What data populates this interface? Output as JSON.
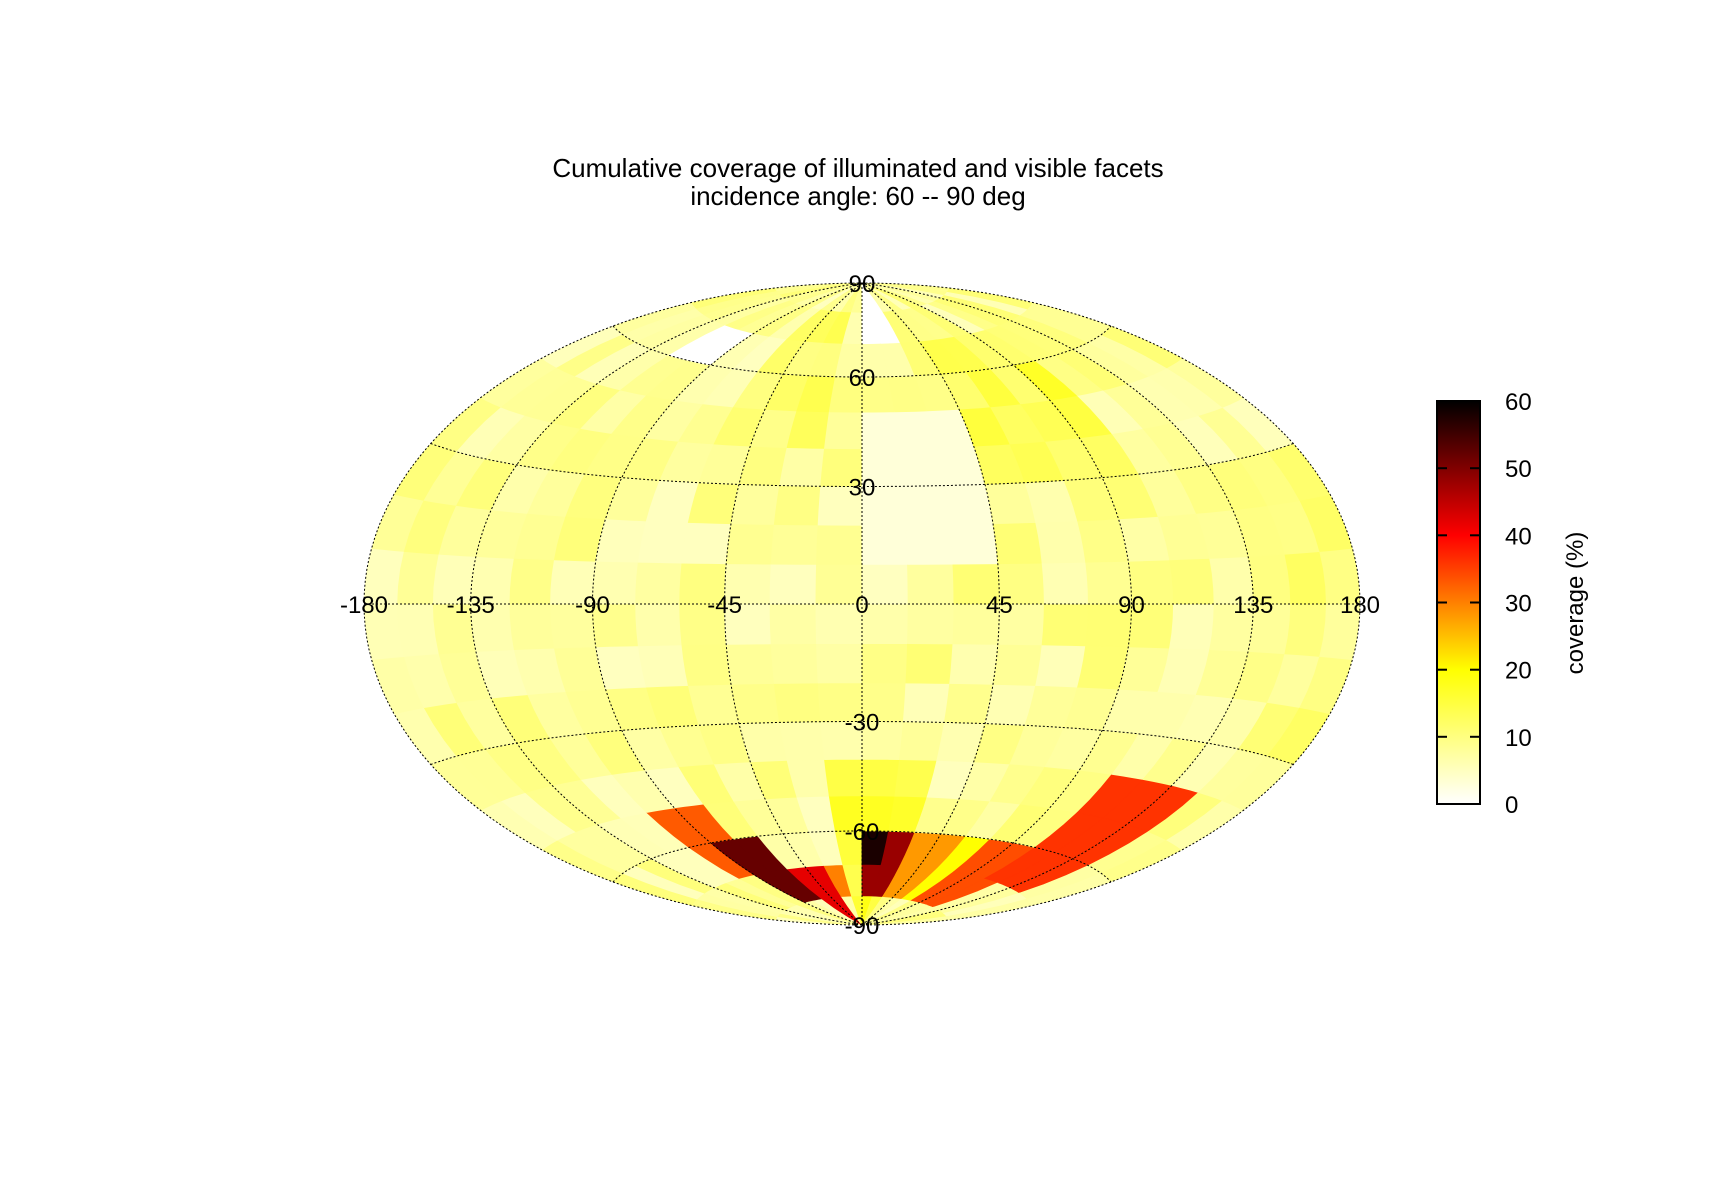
{
  "chart_data": {
    "type": "heatmap",
    "projection": "Hammer-Aitoff (equal-area world map)",
    "title": "Cumulative coverage of illuminated and visible facets",
    "subtitle": "incidence angle: 60 -- 90 deg",
    "x_ticks": [
      "-180",
      "-135",
      "-90",
      "-45",
      "0",
      "45",
      "90",
      "135",
      "180"
    ],
    "y_ticks": [
      "90",
      "60",
      "30",
      "-30",
      "-60",
      "-90"
    ],
    "xlim": [
      -180,
      180
    ],
    "ylim": [
      -90,
      90
    ],
    "grid": true,
    "colorbar": {
      "label": "coverage (%)",
      "ticks": [
        "0",
        "10",
        "20",
        "30",
        "40",
        "50",
        "60"
      ],
      "range": [
        0,
        60
      ],
      "colors": [
        "#ffffff",
        "#ffff80",
        "#ffff00",
        "#ff8000",
        "#ff0000",
        "#800000",
        "#000000"
      ]
    },
    "base_coverage": 8,
    "regions": [
      {
        "lon": [
          -95,
          -65
        ],
        "lat": [
          -78,
          -62
        ],
        "value": 52
      },
      {
        "lon": [
          -65,
          -35
        ],
        "lat": [
          -85,
          -68
        ],
        "value": 42
      },
      {
        "lon": [
          -110,
          -70
        ],
        "lat": [
          -72,
          -50
        ],
        "value": 33
      },
      {
        "lon": [
          -35,
          -10
        ],
        "lat": [
          -82,
          -68
        ],
        "value": 30
      },
      {
        "lon": [
          2,
          14
        ],
        "lat": [
          -68,
          -58
        ],
        "value": 58
      },
      {
        "lon": [
          2,
          28
        ],
        "lat": [
          -82,
          -62
        ],
        "value": 48
      },
      {
        "lon": [
          26,
          60
        ],
        "lat": [
          -82,
          -64
        ],
        "value": 28
      },
      {
        "lon": [
          110,
          150
        ],
        "lat": [
          -66,
          -38
        ],
        "value": 36
      },
      {
        "lon": [
          80,
          115
        ],
        "lat": [
          -82,
          -60
        ],
        "value": 34
      },
      {
        "lon": [
          45,
          90
        ],
        "lat": [
          -75,
          -60
        ],
        "value": 20
      },
      {
        "lon": [
          -10,
          30
        ],
        "lat": [
          -90,
          -45
        ],
        "value": 16
      },
      {
        "lon": [
          -120,
          -95
        ],
        "lat": [
          62,
          72
        ],
        "value": 0
      },
      {
        "lon": [
          5,
          30
        ],
        "lat": [
          72,
          90
        ],
        "value": 0
      },
      {
        "lon": [
          5,
          45
        ],
        "lat": [
          15,
          48
        ],
        "value": 3
      },
      {
        "lon": [
          40,
          110
        ],
        "lat": [
          30,
          70
        ],
        "value": 14
      },
      {
        "lon": [
          -60,
          -10
        ],
        "lat": [
          40,
          75
        ],
        "value": 11
      },
      {
        "lon": [
          -170,
          -110
        ],
        "lat": [
          -30,
          40
        ],
        "value": 5
      },
      {
        "lon": [
          -90,
          -20
        ],
        "lat": [
          -40,
          20
        ],
        "value": 6
      },
      {
        "lon": [
          150,
          180
        ],
        "lat": [
          -30,
          30
        ],
        "value": 10
      }
    ]
  }
}
